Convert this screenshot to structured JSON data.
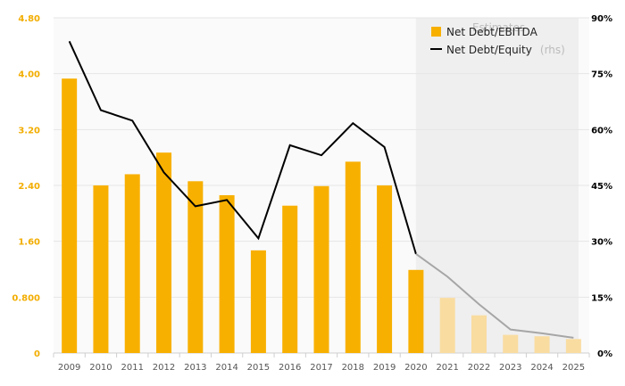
{
  "chart_data": {
    "type": "bar",
    "categories": [
      "2009",
      "2010",
      "2011",
      "2012",
      "2013",
      "2014",
      "2015",
      "2016",
      "2017",
      "2018",
      "2019",
      "2020",
      "2021",
      "2022",
      "2023",
      "2024",
      "2025"
    ],
    "estimate_start_index": 12,
    "estimate_label": "Estimates",
    "series": [
      {
        "name": "Net Debt/EBITDA",
        "type": "bar",
        "axis": "left",
        "values": [
          3.93,
          2.4,
          2.56,
          2.87,
          2.46,
          2.26,
          1.47,
          2.11,
          2.39,
          2.74,
          2.4,
          1.19,
          0.79,
          0.54,
          0.26,
          0.24,
          0.2
        ]
      },
      {
        "name": "Net Debt/Equity",
        "name_suffix": "(rhs)",
        "type": "line",
        "axis": "right",
        "values": [
          83.7,
          65.2,
          62.4,
          48.5,
          39.4,
          41.1,
          30.8,
          55.8,
          53.1,
          61.7,
          55.3,
          26.6,
          20.5,
          13.1,
          6.3,
          5.3,
          4.1
        ]
      }
    ],
    "y_left": {
      "ylim": [
        0,
        4.8
      ],
      "ticks": [
        "0",
        "0.800",
        "1.60",
        "2.40",
        "3.20",
        "4.00",
        "4.80"
      ],
      "values": [
        0,
        0.8,
        1.6,
        2.4,
        3.2,
        4.0,
        4.8
      ]
    },
    "y_right": {
      "ylim": [
        0,
        90
      ],
      "ticks": [
        "0%",
        "15%",
        "30%",
        "45%",
        "60%",
        "75%",
        "90%"
      ],
      "values": [
        0,
        15,
        30,
        45,
        60,
        75,
        90
      ]
    },
    "legend_position": "top-right",
    "grid": true,
    "colors": {
      "bar": "#f8b000",
      "bar_estimate": "#f9dca0",
      "line": "#000000",
      "line_estimate": "#a6a6a6",
      "estimate_bg": "#efefef",
      "plot_bg": "#fafafa"
    }
  }
}
